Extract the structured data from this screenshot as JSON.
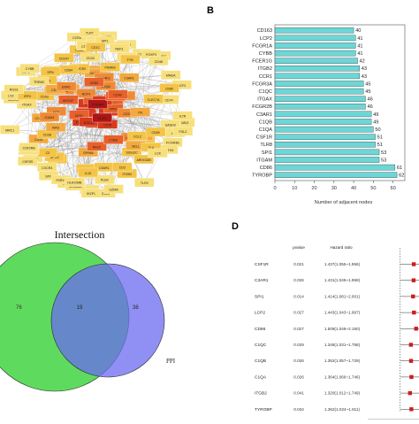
{
  "panel_letters": {
    "b": "B",
    "d": "D"
  },
  "network": {
    "nodes": [
      "CD163",
      "LCP2",
      "FCGR1A",
      "CYBB",
      "FCER1G",
      "ITGB2",
      "CCR1",
      "FCGR3A",
      "C1QC",
      "ITGAX",
      "FCGR2B",
      "C3AR1",
      "C1QB",
      "C1QA",
      "CSF1R",
      "TLR8",
      "SPI1",
      "ITGAM",
      "CD86",
      "TYROBP",
      "CYBB",
      "PLA2",
      "ALOX5",
      "LILRB2",
      "NCF2",
      "CD4",
      "MS4A",
      "IL10",
      "HLA",
      "CD14",
      "APOE",
      "CTSS",
      "LAIR1",
      "LY86",
      "CD53",
      "SIGLEC",
      "VSIG4",
      "MPEG1",
      "FPR1",
      "CSF3R",
      "MNDA",
      "SELL",
      "ITGB3",
      "CXCR4",
      "C5AR1",
      "PTPRC",
      "LAPTM5",
      "HCK",
      "TNF",
      "LCP1",
      "FOXP3",
      "IRF8",
      "CD68",
      "SAMSN",
      "GPR65",
      "NCF1",
      "CCL2",
      "CD36",
      "TREM2",
      "MRC1",
      "NCF4",
      "PLEK",
      "EVI2B",
      "CD37",
      "FCGR3B",
      "HLA-E",
      "CD74",
      "RAC2",
      "CCL5",
      "CD2",
      "CD3E",
      "VAV1",
      "BTK",
      "ARHGDIB",
      "TYROBP",
      "CYTH4",
      "CD300",
      "IKZF1",
      "PIK3CG",
      "FYB",
      "CORO1A",
      "IL7R",
      "LYZ",
      "CD44",
      "C3",
      "P2RY8",
      "NCKAP1L",
      "CD48",
      "MYO1F",
      "SASH3",
      "GMFG",
      "CD52",
      "DOCK2",
      "HAVCR2",
      "CCR5",
      "IL2RG",
      "MAP4K1",
      "CD84",
      "ITK",
      "CD38",
      "MS4A6A",
      "CLEC7A",
      "IL1B",
      "GZMA",
      "CD8A",
      "CD247",
      "LSP1",
      "SLA",
      "WAS",
      "CSF2RB",
      "FGL2",
      "EMR1",
      "CIITA",
      "IRF4",
      "LCK",
      "STAT1",
      "CD40",
      "HLA-DMB",
      "TLR2",
      "IL18",
      "CTLA4",
      "CD80",
      "SPN",
      "RGS1",
      "CD69",
      "SPI1",
      "CD33",
      "CD83",
      "ICAM1",
      "PSMB9",
      "CYBA",
      "CD1C",
      "TLR7",
      "NEK1"
    ]
  },
  "bar_chart": {
    "type": "bar",
    "categories": [
      "CD163",
      "LCP2",
      "FCGR1A",
      "CYBB",
      "FCER1G",
      "ITGB2",
      "CCR1",
      "FCGR3A",
      "C1QC",
      "ITGAX",
      "FCGR2B",
      "C3AR1",
      "C1QB",
      "C1QA",
      "CSF1R",
      "TLR8",
      "SPI1",
      "ITGAM",
      "CD86",
      "TYROBP"
    ],
    "values": [
      40,
      41,
      41,
      41,
      42,
      43,
      43,
      45,
      45,
      46,
      46,
      49,
      49,
      50,
      51,
      51,
      53,
      53,
      61,
      62
    ],
    "xlabel": "Number of adjacent nodes",
    "xticks": [
      0,
      10,
      20,
      30,
      40,
      50,
      60
    ],
    "xlim": [
      0,
      66
    ],
    "bar_color": "#6dd6d6"
  },
  "venn": {
    "title": "Intersection",
    "left_count": "76",
    "overlap_count": "19",
    "right_count": "38",
    "right_label": "PPI",
    "left_color": "#55d955",
    "right_color": "#6b6bf0"
  },
  "forest": {
    "header_pvalue": "pvalue",
    "header_hr": "Hazard ratio",
    "genes": [
      "CSF1R",
      "C3AR1",
      "SPI1",
      "LCP2",
      "CD86",
      "C1QC",
      "C1QB",
      "C1QA",
      "ITGB2",
      "TYROBP"
    ],
    "pvalues": [
      "0.021",
      "0.026",
      "0.014",
      "0.027",
      "0.027",
      "0.029",
      "0.026",
      "0.026",
      "0.041",
      "0.034"
    ],
    "hr_text": [
      "1.437(1.055~1.956)",
      "1.431(1.045~1.959)",
      "1.414(1.081~2.001)",
      "1.443(1.043~1.997)",
      "1.509(1.048~2.150)",
      "1.348(1.031~1.758)",
      "1.352(1.057~1.729)",
      "1.364(1.066~1.746)",
      "1.320(1.012~1.749)",
      "1.362(1.024~1.811)"
    ],
    "hr": [
      1.437,
      1.431,
      1.414,
      1.443,
      1.509,
      1.348,
      1.352,
      1.364,
      1.32,
      1.362
    ],
    "xticks": [
      "0.0",
      "0.5",
      "1.0"
    ],
    "xlabel": "Hazard ratio"
  },
  "chart_data": [
    {
      "type": "bar",
      "orientation": "horizontal",
      "categories": [
        "CD163",
        "LCP2",
        "FCGR1A",
        "CYBB",
        "FCER1G",
        "ITGB2",
        "CCR1",
        "FCGR3A",
        "C1QC",
        "ITGAX",
        "FCGR2B",
        "C3AR1",
        "C1QB",
        "C1QA",
        "CSF1R",
        "TLR8",
        "SPI1",
        "ITGAM",
        "CD86",
        "TYROBP"
      ],
      "values": [
        40,
        41,
        41,
        41,
        42,
        43,
        43,
        45,
        45,
        46,
        46,
        49,
        49,
        50,
        51,
        51,
        53,
        53,
        61,
        62
      ],
      "xlabel": "Number of adjacent nodes",
      "ylabel": "",
      "xlim": [
        0,
        66
      ]
    },
    {
      "type": "venn",
      "title": "Intersection",
      "sets": [
        {
          "count": 76
        },
        {
          "name": "PPI",
          "count": 38
        }
      ],
      "overlap": 19
    },
    {
      "type": "forest",
      "categories": [
        "CSF1R",
        "C3AR1",
        "SPI1",
        "LCP2",
        "CD86",
        "C1QC",
        "C1QB",
        "C1QA",
        "ITGB2",
        "TYROBP"
      ],
      "hazard_ratio": [
        1.437,
        1.431,
        1.414,
        1.443,
        1.509,
        1.348,
        1.352,
        1.364,
        1.32,
        1.362
      ],
      "pvalue": [
        0.021,
        0.026,
        0.014,
        0.027,
        0.027,
        0.029,
        0.026,
        0.026,
        0.041,
        0.034
      ],
      "xlabel": "Hazard ratio"
    }
  ]
}
